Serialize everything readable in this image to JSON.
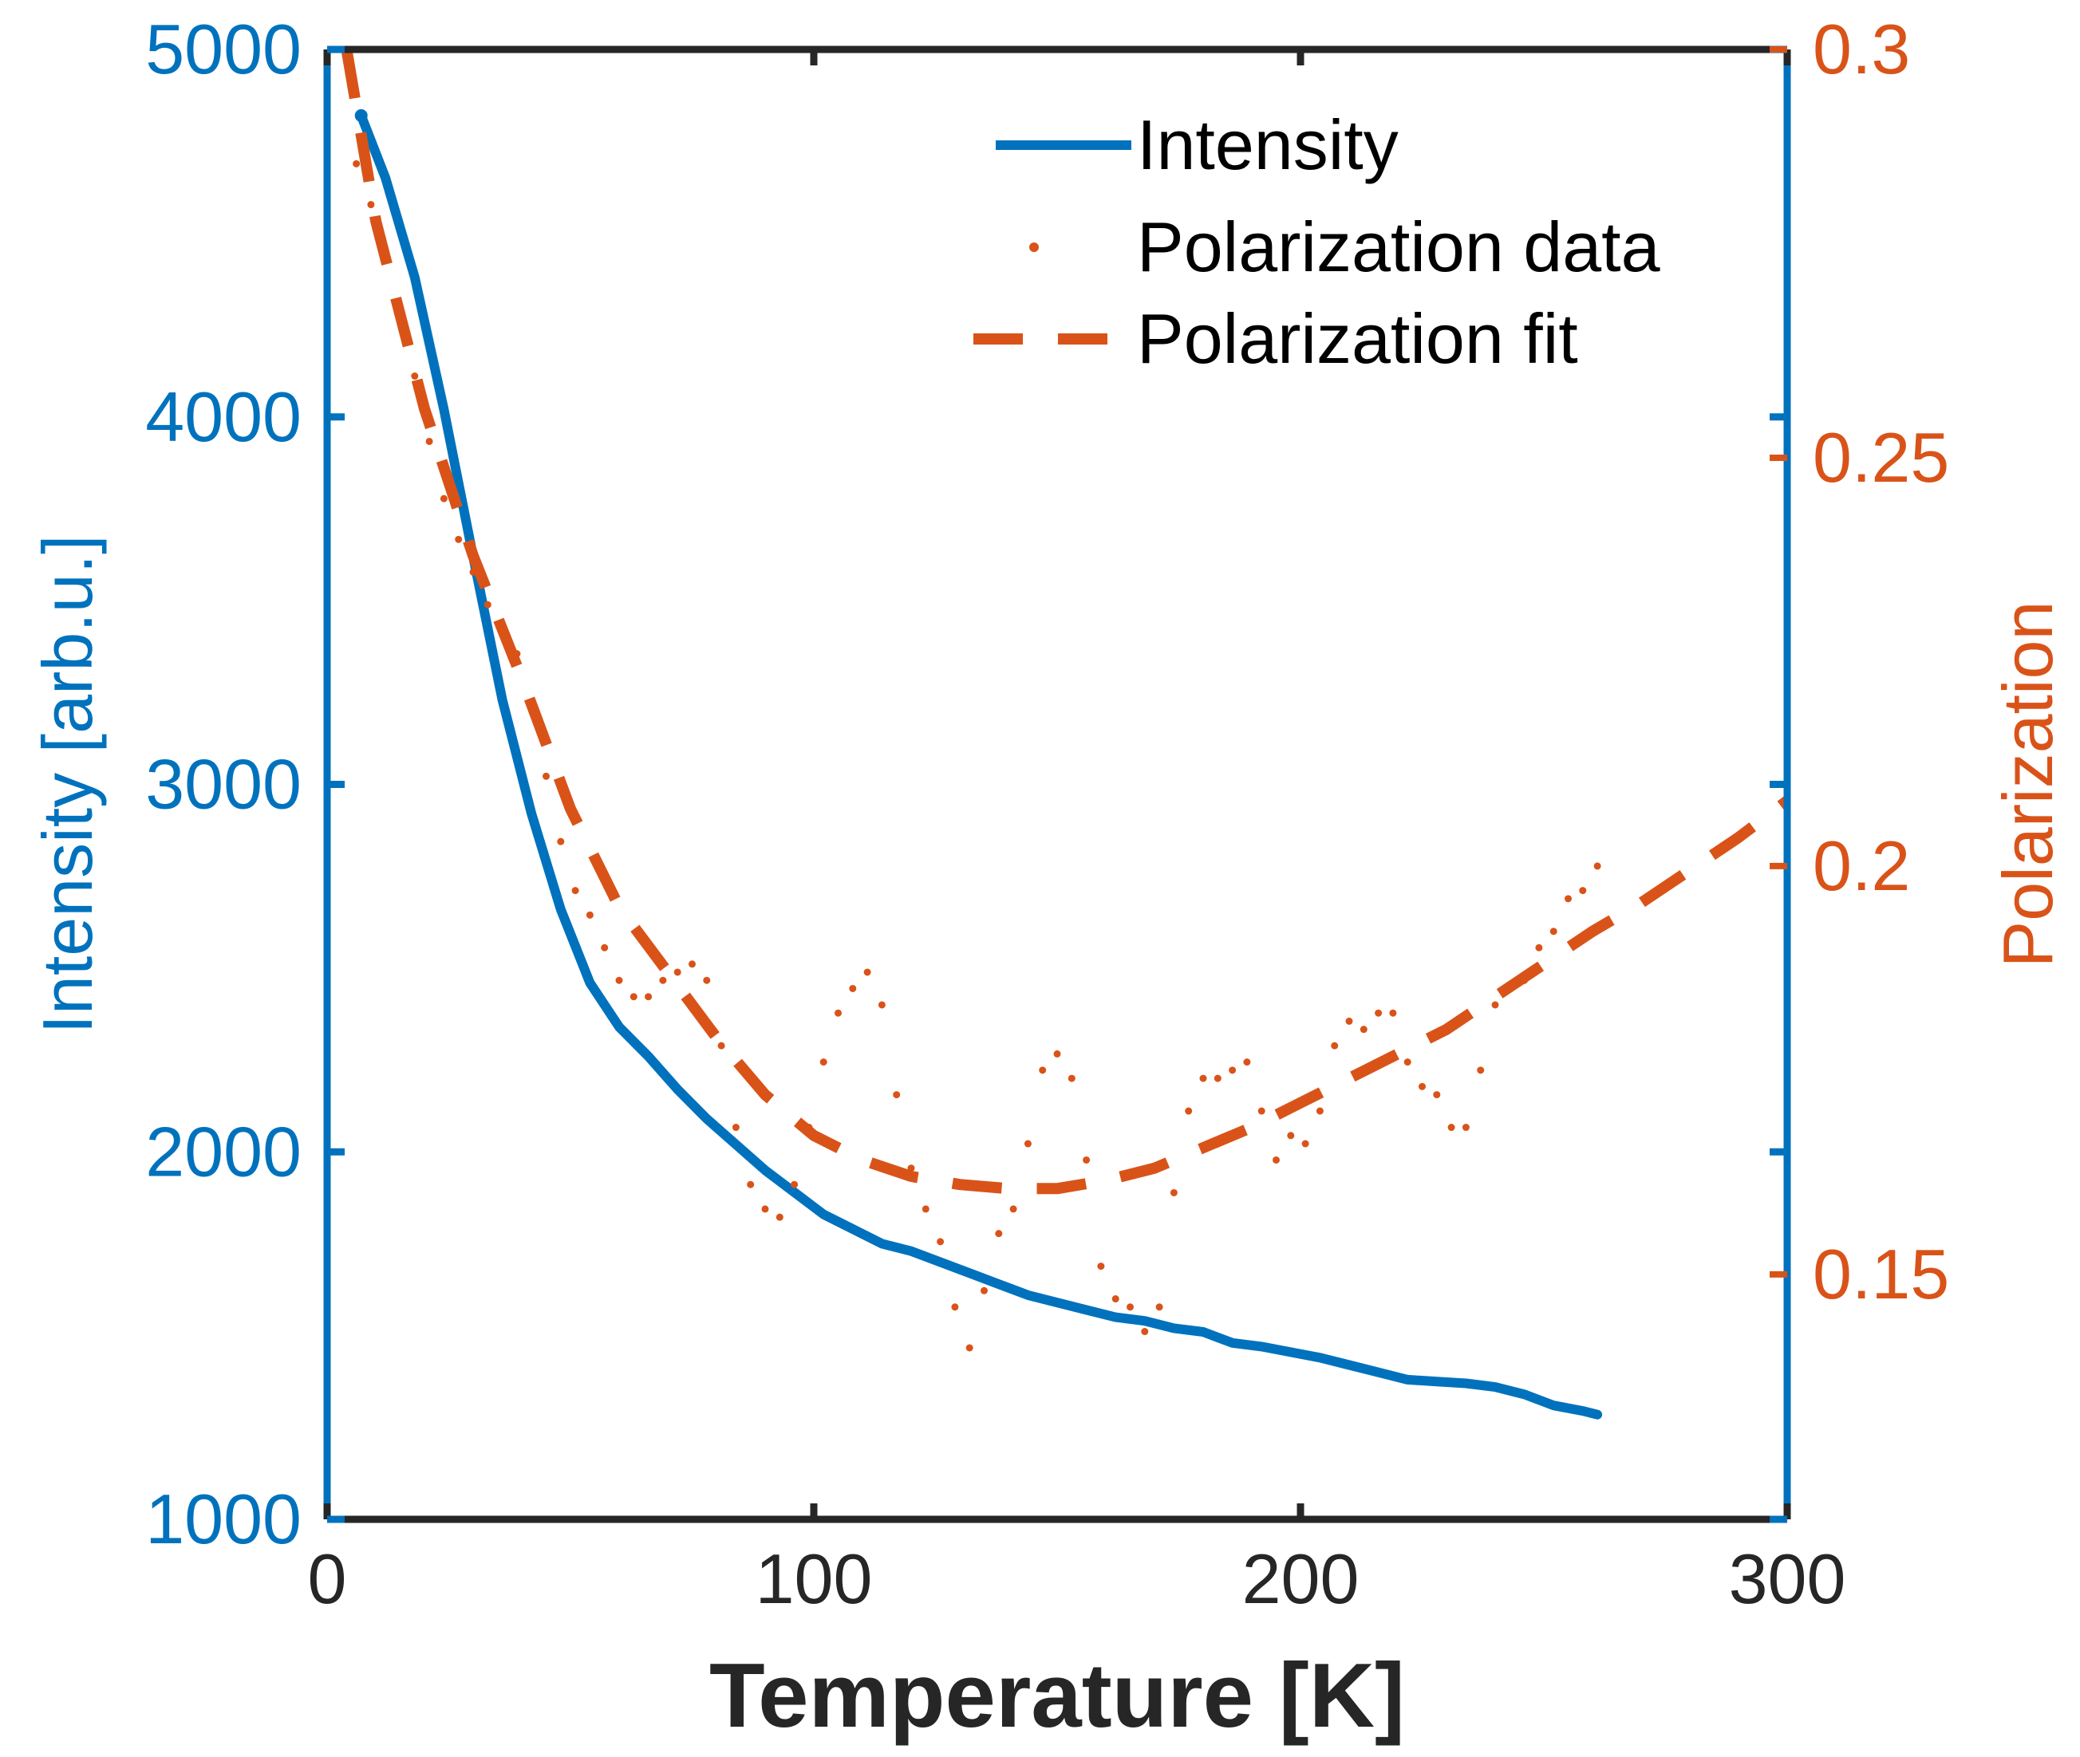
{
  "chart_data": {
    "type": "line",
    "title": "",
    "xlabel": "Temperature [K]",
    "ylabel_left": "Intensity [arb.u.]",
    "ylabel_right": "Polarization",
    "xlim": [
      0,
      300
    ],
    "ylim_left": [
      1000,
      5000
    ],
    "ylim_right": [
      0.12,
      0.3
    ],
    "xticks": [
      "0",
      "100",
      "200",
      "300"
    ],
    "yticks_left": [
      "1000",
      "2000",
      "3000",
      "4000",
      "5000"
    ],
    "yticks_right": [
      "0.15",
      "0.2",
      "0.25",
      "0.3"
    ],
    "yticks_right_values": [
      0.15,
      0.2,
      0.25,
      0.3
    ],
    "legend_position": "top-right",
    "colors": {
      "intensity": "#0072BD",
      "polarization": "#D95319",
      "axes": "#262626"
    },
    "series": [
      {
        "name": "Intensity",
        "axis": "left",
        "style": "solid",
        "color": "#0072BD",
        "x": [
          7,
          12,
          18,
          24,
          30,
          36,
          42,
          48,
          54,
          60,
          66,
          72,
          78,
          84,
          90,
          96,
          102,
          108,
          114,
          120,
          126,
          132,
          138,
          144,
          150,
          156,
          162,
          168,
          174,
          180,
          186,
          192,
          198,
          204,
          210,
          216,
          222,
          228,
          234,
          240,
          246,
          252,
          258,
          261
        ],
        "values": [
          4820,
          4650,
          4380,
          4020,
          3620,
          3230,
          2920,
          2660,
          2460,
          2340,
          2260,
          2170,
          2090,
          2020,
          1950,
          1890,
          1830,
          1790,
          1750,
          1730,
          1700,
          1670,
          1640,
          1610,
          1590,
          1570,
          1550,
          1540,
          1520,
          1510,
          1480,
          1470,
          1455,
          1440,
          1420,
          1400,
          1380,
          1375,
          1370,
          1360,
          1340,
          1310,
          1295,
          1285
        ]
      },
      {
        "name": "Polarization data",
        "axis": "right",
        "style": "dotted",
        "color": "#D95319",
        "x": [
          6,
          9,
          12,
          15,
          18,
          21,
          24,
          27,
          30,
          33,
          36,
          39,
          42,
          45,
          48,
          51,
          54,
          57,
          60,
          63,
          66,
          69,
          72,
          75,
          78,
          81,
          84,
          87,
          90,
          93,
          96,
          99,
          102,
          105,
          108,
          111,
          114,
          117,
          120,
          123,
          126,
          129,
          132,
          135,
          138,
          141,
          144,
          147,
          150,
          153,
          156,
          159,
          162,
          165,
          168,
          171,
          174,
          177,
          180,
          183,
          186,
          189,
          192,
          195,
          198,
          201,
          204,
          207,
          210,
          213,
          216,
          219,
          222,
          225,
          228,
          231,
          234,
          237,
          240,
          243,
          246,
          249,
          252,
          255,
          258,
          261
        ],
        "values": [
          0.286,
          0.281,
          0.275,
          0.268,
          0.26,
          0.252,
          0.245,
          0.24,
          0.236,
          0.232,
          0.229,
          0.226,
          0.22,
          0.211,
          0.203,
          0.197,
          0.194,
          0.19,
          0.186,
          0.184,
          0.184,
          0.186,
          0.187,
          0.188,
          0.186,
          0.178,
          0.168,
          0.161,
          0.158,
          0.157,
          0.161,
          0.168,
          0.176,
          0.182,
          0.185,
          0.187,
          0.183,
          0.172,
          0.163,
          0.158,
          0.154,
          0.146,
          0.141,
          0.148,
          0.155,
          0.158,
          0.166,
          0.175,
          0.177,
          0.174,
          0.164,
          0.151,
          0.147,
          0.146,
          0.143,
          0.146,
          0.16,
          0.17,
          0.174,
          0.174,
          0.175,
          0.176,
          0.17,
          0.164,
          0.167,
          0.166,
          0.17,
          0.178,
          0.181,
          0.18,
          0.182,
          0.182,
          0.176,
          0.173,
          0.172,
          0.168,
          0.168,
          0.175,
          0.183,
          0.185,
          0.186,
          0.19,
          0.192,
          0.196,
          0.197,
          0.2
        ]
      },
      {
        "name": "Polarization fit",
        "axis": "right",
        "style": "dashed",
        "color": "#D95319",
        "x": [
          4,
          10,
          20,
          30,
          40,
          50,
          60,
          70,
          80,
          90,
          100,
          110,
          120,
          130,
          140,
          150,
          160,
          170,
          180,
          190,
          200,
          210,
          220,
          230,
          240,
          250,
          260,
          270,
          280,
          290,
          300
        ],
        "values": [
          0.3,
          0.279,
          0.256,
          0.238,
          0.223,
          0.207,
          0.195,
          0.187,
          0.179,
          0.172,
          0.167,
          0.164,
          0.162,
          0.161,
          0.1605,
          0.1605,
          0.1615,
          0.163,
          0.1655,
          0.168,
          0.171,
          0.174,
          0.177,
          0.18,
          0.184,
          0.188,
          0.192,
          0.1955,
          0.1995,
          0.2035,
          0.208
        ]
      }
    ]
  }
}
